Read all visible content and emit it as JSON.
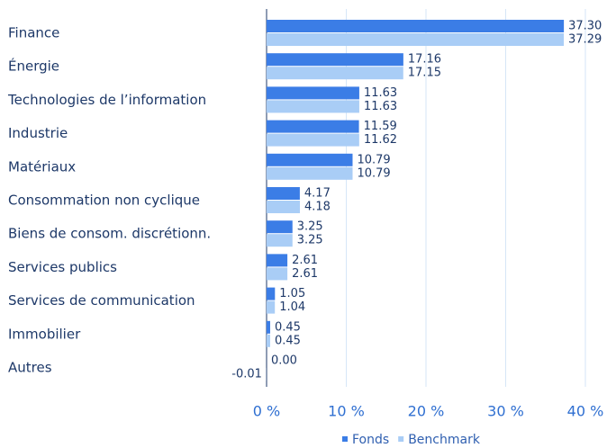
{
  "chart_data": {
    "type": "bar",
    "orientation": "horizontal",
    "categories": [
      "Finance",
      "Énergie",
      "Technologies de l’information",
      "Industrie",
      "Matériaux",
      "Consommation non cyclique",
      "Biens de consom. discrétionn.",
      "Services publics",
      "Services de communication",
      "Immobilier",
      "Autres"
    ],
    "series": [
      {
        "name": "Fonds",
        "color": "#3b7de6",
        "values": [
          37.3,
          17.16,
          11.63,
          11.59,
          10.79,
          4.17,
          3.25,
          2.61,
          1.05,
          0.45,
          0
        ],
        "value_labels": [
          "37.30",
          "17.16",
          "11.63",
          "11.59",
          "10.79",
          "4.17",
          "3.25",
          "2.61",
          "1.05",
          "0.45",
          "0.00"
        ]
      },
      {
        "name": "Benchmark",
        "color": "#a9cdf6",
        "values": [
          37.29,
          17.15,
          11.63,
          11.62,
          10.79,
          4.18,
          3.25,
          2.61,
          1.04,
          0.45,
          -0.01
        ],
        "value_labels": [
          "37.29",
          "17.15",
          "11.63",
          "11.62",
          "10.79",
          "4.18",
          "3.25",
          "2.61",
          "1.04",
          "0.45",
          "-0.01"
        ]
      }
    ],
    "xlim": [
      0,
      40
    ],
    "xticks": [
      {
        "value": 0,
        "label": "0 %"
      },
      {
        "value": 10,
        "label": "10 %"
      },
      {
        "value": 20,
        "label": "20 %"
      },
      {
        "value": 30,
        "label": "30 %"
      },
      {
        "value": 40,
        "label": "40 %"
      }
    ],
    "grid": true,
    "legend": "bottom"
  }
}
